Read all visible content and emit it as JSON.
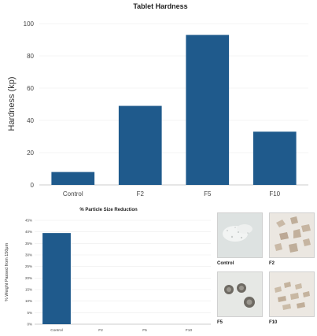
{
  "chart_data": [
    {
      "type": "bar",
      "title": "Tablet Hardness",
      "xlabel": "",
      "ylabel": "Hardness (kp)",
      "categories": [
        "Control",
        "F2",
        "F5",
        "F10"
      ],
      "values": [
        8,
        49,
        93,
        33
      ],
      "ylim": [
        0,
        100
      ],
      "yticks": [
        "0",
        "20",
        "40",
        "60",
        "80",
        "100"
      ],
      "grid": true,
      "bar_color": "#1f5a8c"
    },
    {
      "type": "bar",
      "title": "% Particle Size Reduction",
      "xlabel": "",
      "ylabel": "% Weight Passed from 150μm",
      "categories": [
        "Control",
        "F2",
        "F5",
        "F10"
      ],
      "values": [
        39.5,
        0,
        0,
        0
      ],
      "ylim": [
        0,
        45
      ],
      "yticks": [
        "0%",
        "5%",
        "10%",
        "15%",
        "20%",
        "25%",
        "30%",
        "35%",
        "40%",
        "45%"
      ],
      "grid": true,
      "bar_color": "#1f5a8c"
    }
  ],
  "micrographs": [
    {
      "label": "Control",
      "icon": "powder-micrograph-icon"
    },
    {
      "label": "F2",
      "icon": "granule-micrograph-icon"
    },
    {
      "label": "F5",
      "icon": "spherical-particle-micrograph-icon"
    },
    {
      "label": "F10",
      "icon": "crystal-micrograph-icon"
    }
  ]
}
